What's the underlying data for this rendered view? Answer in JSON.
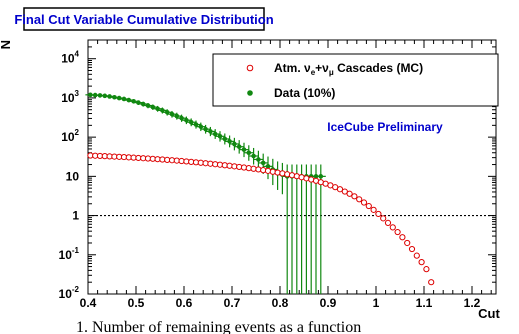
{
  "chart_data": {
    "type": "scatter",
    "title": "Final Cut Variable Cumulative Distribution",
    "xlabel": "Cut",
    "ylabel": "N",
    "xlim": [
      0.4,
      1.25
    ],
    "ylim": [
      0.01,
      30000
    ],
    "yscale": "log",
    "grid": false,
    "legend_position": "top-right",
    "x_ticks": [
      "0.4",
      "0.5",
      "0.6",
      "0.7",
      "0.8",
      "0.9",
      "1",
      "1.1",
      "1.2"
    ],
    "x_tick_values": [
      0.4,
      0.5,
      0.6,
      0.7,
      0.8,
      0.9,
      1.0,
      1.1,
      1.2
    ],
    "y_ticks": [
      {
        "value": 10000,
        "base": "10",
        "exp": "4"
      },
      {
        "value": 1000,
        "base": "10",
        "exp": "3"
      },
      {
        "value": 100,
        "base": "10",
        "exp": "2"
      },
      {
        "value": 10,
        "base": "10",
        "exp": ""
      },
      {
        "value": 1,
        "base": "1",
        "exp": ""
      },
      {
        "value": 0.1,
        "base": "10",
        "exp": "-1"
      },
      {
        "value": 0.01,
        "base": "10",
        "exp": "-2"
      }
    ],
    "reference_line": {
      "y": 1,
      "style": "dotted"
    },
    "annotation": "IceCube Preliminary",
    "legend": {
      "mc": {
        "prefix": "Atm. ν",
        "sub1": "e",
        "middle": "+ν",
        "sub2": "μ",
        "suffix": " Cascades (MC)"
      },
      "data": "Data (10%)"
    },
    "series": [
      {
        "key": "mc",
        "color": "#dd0000",
        "marker": "open-circle",
        "points": [
          [
            0.405,
            34
          ],
          [
            0.415,
            33.6
          ],
          [
            0.425,
            33.2
          ],
          [
            0.435,
            32.8
          ],
          [
            0.445,
            32.3
          ],
          [
            0.455,
            31.9
          ],
          [
            0.465,
            31.4
          ],
          [
            0.475,
            31
          ],
          [
            0.485,
            30.5
          ],
          [
            0.495,
            30
          ],
          [
            0.505,
            29.5
          ],
          [
            0.515,
            29
          ],
          [
            0.525,
            28.5
          ],
          [
            0.535,
            28
          ],
          [
            0.545,
            27.4
          ],
          [
            0.555,
            26.9
          ],
          [
            0.565,
            26.3
          ],
          [
            0.575,
            25.8
          ],
          [
            0.585,
            25.2
          ],
          [
            0.595,
            24.6
          ],
          [
            0.605,
            24
          ],
          [
            0.615,
            23.4
          ],
          [
            0.625,
            22.8
          ],
          [
            0.635,
            22.2
          ],
          [
            0.645,
            21.6
          ],
          [
            0.655,
            21
          ],
          [
            0.665,
            20.4
          ],
          [
            0.675,
            19.8
          ],
          [
            0.685,
            19.2
          ],
          [
            0.695,
            18.6
          ],
          [
            0.705,
            18
          ],
          [
            0.715,
            17.4
          ],
          [
            0.725,
            16.8
          ],
          [
            0.735,
            16.2
          ],
          [
            0.745,
            15.6
          ],
          [
            0.755,
            15
          ],
          [
            0.765,
            14.4
          ],
          [
            0.775,
            13.8
          ],
          [
            0.785,
            13.1
          ],
          [
            0.795,
            12.5
          ],
          [
            0.805,
            11.9
          ],
          [
            0.815,
            11.3
          ],
          [
            0.825,
            10.7
          ],
          [
            0.835,
            10.1
          ],
          [
            0.845,
            9.5
          ],
          [
            0.855,
            8.9
          ],
          [
            0.865,
            8.3
          ],
          [
            0.875,
            7.7
          ],
          [
            0.885,
            7.1
          ],
          [
            0.895,
            6.5
          ],
          [
            0.905,
            5.9
          ],
          [
            0.915,
            5.3
          ],
          [
            0.925,
            4.7
          ],
          [
            0.935,
            4.1
          ],
          [
            0.945,
            3.6
          ],
          [
            0.955,
            3.1
          ],
          [
            0.965,
            2.6
          ],
          [
            0.975,
            2.15
          ],
          [
            0.985,
            1.75
          ],
          [
            0.995,
            1.4
          ],
          [
            1.005,
            1.1
          ],
          [
            1.015,
            0.85
          ],
          [
            1.025,
            0.65
          ],
          [
            1.035,
            0.5
          ],
          [
            1.045,
            0.38
          ],
          [
            1.055,
            0.28
          ],
          [
            1.065,
            0.2
          ],
          [
            1.075,
            0.14
          ],
          [
            1.085,
            0.095
          ],
          [
            1.095,
            0.065
          ],
          [
            1.105,
            0.043
          ],
          [
            1.115,
            0.02
          ]
        ]
      },
      {
        "key": "data",
        "color": "#118811",
        "marker": "filled-circle",
        "points": [
          [
            0.405,
            1200,
            1300,
            1100
          ],
          [
            0.415,
            1180,
            1280,
            1080
          ],
          [
            0.425,
            1160,
            1260,
            1060
          ],
          [
            0.435,
            1130,
            1230,
            1030
          ],
          [
            0.445,
            1090,
            1190,
            990
          ],
          [
            0.455,
            1040,
            1140,
            940
          ],
          [
            0.465,
            990,
            1090,
            890
          ],
          [
            0.475,
            940,
            1040,
            840
          ],
          [
            0.485,
            880,
            980,
            780
          ],
          [
            0.495,
            820,
            920,
            720
          ],
          [
            0.505,
            760,
            860,
            660
          ],
          [
            0.515,
            700,
            800,
            600
          ],
          [
            0.525,
            640,
            740,
            545
          ],
          [
            0.535,
            585,
            680,
            495
          ],
          [
            0.545,
            530,
            625,
            445
          ],
          [
            0.555,
            480,
            570,
            400
          ],
          [
            0.565,
            430,
            515,
            355
          ],
          [
            0.575,
            385,
            465,
            315
          ],
          [
            0.585,
            345,
            420,
            280
          ],
          [
            0.595,
            305,
            375,
            245
          ],
          [
            0.605,
            270,
            335,
            215
          ],
          [
            0.615,
            240,
            300,
            190
          ],
          [
            0.625,
            210,
            265,
            165
          ],
          [
            0.635,
            185,
            235,
            143
          ],
          [
            0.645,
            160,
            205,
            123
          ],
          [
            0.655,
            140,
            182,
            106
          ],
          [
            0.665,
            120,
            160,
            90
          ],
          [
            0.675,
            105,
            142,
            77
          ],
          [
            0.685,
            90,
            124,
            65
          ],
          [
            0.695,
            78,
            110,
            55
          ],
          [
            0.705,
            67,
            96,
            46
          ],
          [
            0.715,
            57,
            84,
            38
          ],
          [
            0.725,
            48,
            72,
            31
          ],
          [
            0.735,
            40,
            62,
            25
          ],
          [
            0.745,
            33,
            53,
            20
          ],
          [
            0.755,
            27,
            45,
            15
          ],
          [
            0.765,
            22,
            38,
            11.5
          ],
          [
            0.775,
            18,
            32,
            8.5
          ],
          [
            0.785,
            15,
            28,
            6
          ],
          [
            0.795,
            12.5,
            24,
            4.5
          ],
          [
            0.805,
            11,
            22,
            3.5
          ],
          [
            0.815,
            10,
            20,
            0.008
          ],
          [
            0.825,
            10,
            20,
            0.008
          ],
          [
            0.835,
            10,
            20,
            0.008
          ],
          [
            0.845,
            10,
            20,
            0.008
          ],
          [
            0.855,
            10,
            20,
            0.008
          ],
          [
            0.865,
            10,
            20,
            0.008
          ],
          [
            0.875,
            10,
            20,
            0.008
          ],
          [
            0.885,
            10,
            20,
            0.008
          ]
        ]
      }
    ]
  },
  "caption": "1. Number of remaining events as a function"
}
